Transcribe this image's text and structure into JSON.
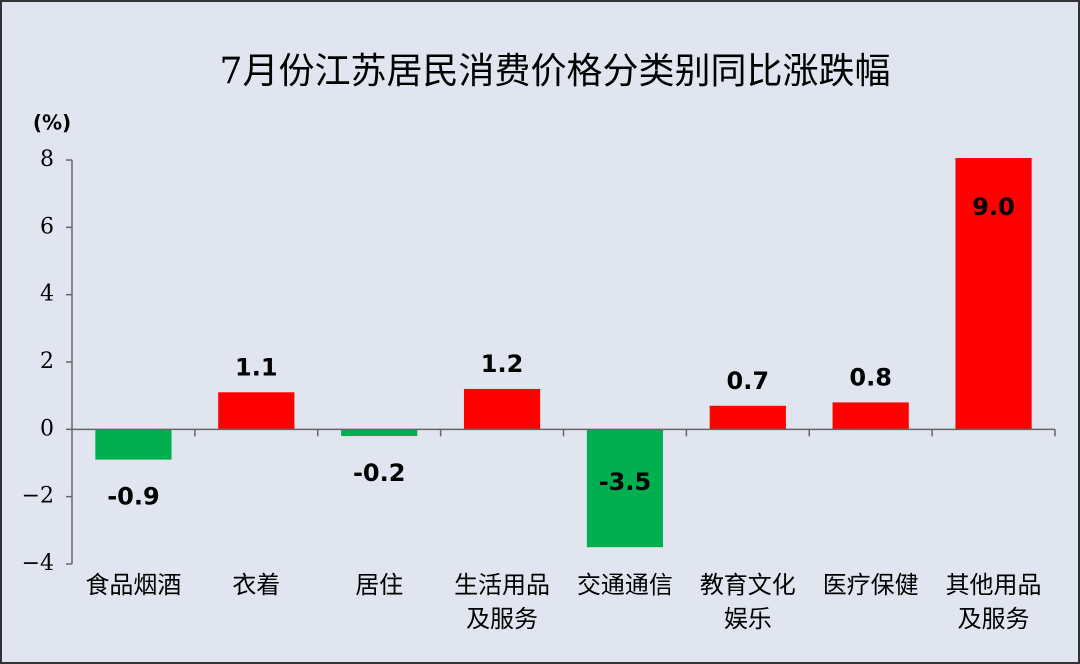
{
  "chart_data": {
    "type": "bar",
    "title": "7月份江苏居民消费价格分类别同比涨跌幅",
    "y_label": "(%)",
    "categories": [
      [
        "食品烟酒"
      ],
      [
        "衣着"
      ],
      [
        "居住"
      ],
      [
        "生活用品",
        "及服务"
      ],
      [
        "交通通信"
      ],
      [
        "教育文化",
        "娱乐"
      ],
      [
        "医疗保健"
      ],
      [
        "其他用品",
        "及服务"
      ]
    ],
    "values": [
      -0.9,
      1.1,
      -0.2,
      1.2,
      -3.5,
      0.7,
      0.8,
      9.0
    ],
    "value_labels": [
      "-0.9",
      "1.1",
      "-0.2",
      "1.2",
      "-3.5",
      "0.7",
      "0.8",
      "9.0"
    ],
    "positive_color": "#ff0000",
    "negative_color": "#00b050",
    "ylim": [
      -4,
      8
    ],
    "yticks": [
      {
        "value": -4,
        "label": "−4"
      },
      {
        "value": -2,
        "label": "−2"
      },
      0,
      2,
      4,
      6,
      8
    ],
    "grid": false
  }
}
